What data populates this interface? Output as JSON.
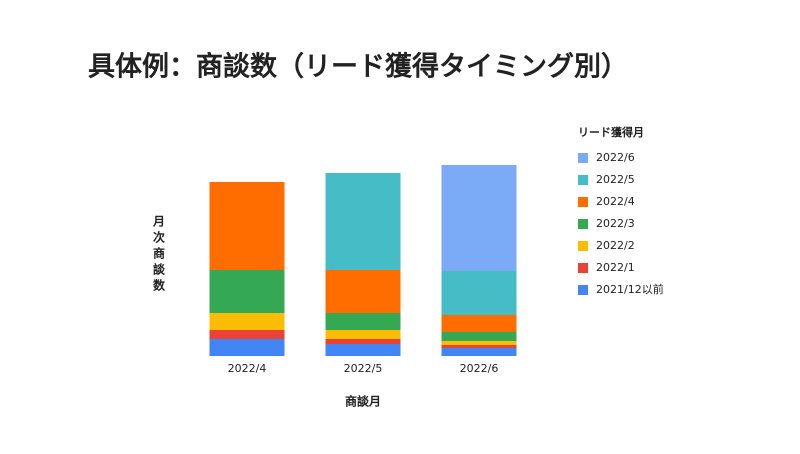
{
  "chart_data": {
    "type": "stacked_bar",
    "title": "具体例：商談数（リード獲得タイミング別）",
    "x_label": "商談月",
    "y_label": "月次商談数",
    "legend_title": "リード獲得月",
    "categories": [
      "2022/4",
      "2022/5",
      "2022/6"
    ],
    "ylim": [
      0,
      200
    ],
    "series": [
      {
        "name": "2022/6",
        "color": "#7baaf7",
        "values": [
          null,
          null,
          106
        ]
      },
      {
        "name": "2022/5",
        "color": "#46bdc6",
        "values": [
          null,
          97,
          44
        ]
      },
      {
        "name": "2022/4",
        "color": "#ff6d01",
        "values": [
          88,
          43,
          17
        ]
      },
      {
        "name": "2022/3",
        "color": "#34a853",
        "values": [
          43,
          17,
          9
        ]
      },
      {
        "name": "2022/2",
        "color": "#fbbc04",
        "values": [
          17,
          9,
          4
        ]
      },
      {
        "name": "2022/1",
        "color": "#ea4335",
        "values": [
          9,
          5,
          3
        ]
      },
      {
        "name": "2021/12以前",
        "color": "#4285f4",
        "values": [
          17,
          12,
          8
        ]
      }
    ]
  }
}
